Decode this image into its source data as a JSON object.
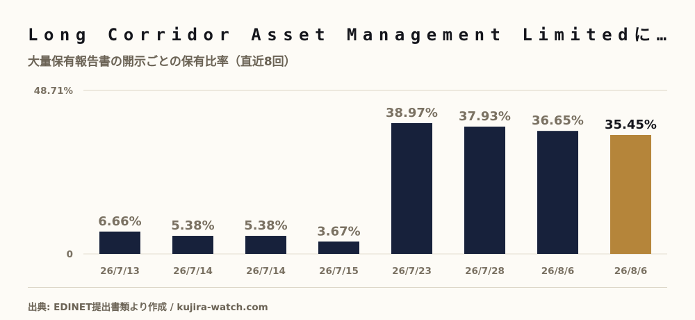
{
  "title": "Long Corridor Asset Management Limitedによ…",
  "subtitle": "大量保有報告書の開示ごとの保有比率（直近8回）",
  "source": "出典: EDINET提出書類より作成 / kujira-watch.com",
  "colors": {
    "bar": "#17213b",
    "highlight": "#b5853a",
    "label": "#7a7162",
    "highlight_label": "#15161c"
  },
  "chart_data": {
    "type": "bar",
    "categories": [
      "26/7/13",
      "26/7/14",
      "26/7/14",
      "26/7/15",
      "26/7/23",
      "26/7/28",
      "26/8/6",
      "26/8/6"
    ],
    "values": [
      6.66,
      5.38,
      5.38,
      3.67,
      38.97,
      37.93,
      36.65,
      35.45
    ],
    "value_labels": [
      "6.66%",
      "5.38%",
      "5.38%",
      "3.67%",
      "38.97%",
      "37.93%",
      "36.65%",
      "35.45%"
    ],
    "highlight_index": 7,
    "ylim": [
      0,
      48.71
    ],
    "ytick_labels": [
      "0",
      "48.71%"
    ],
    "grid": "top line only"
  }
}
